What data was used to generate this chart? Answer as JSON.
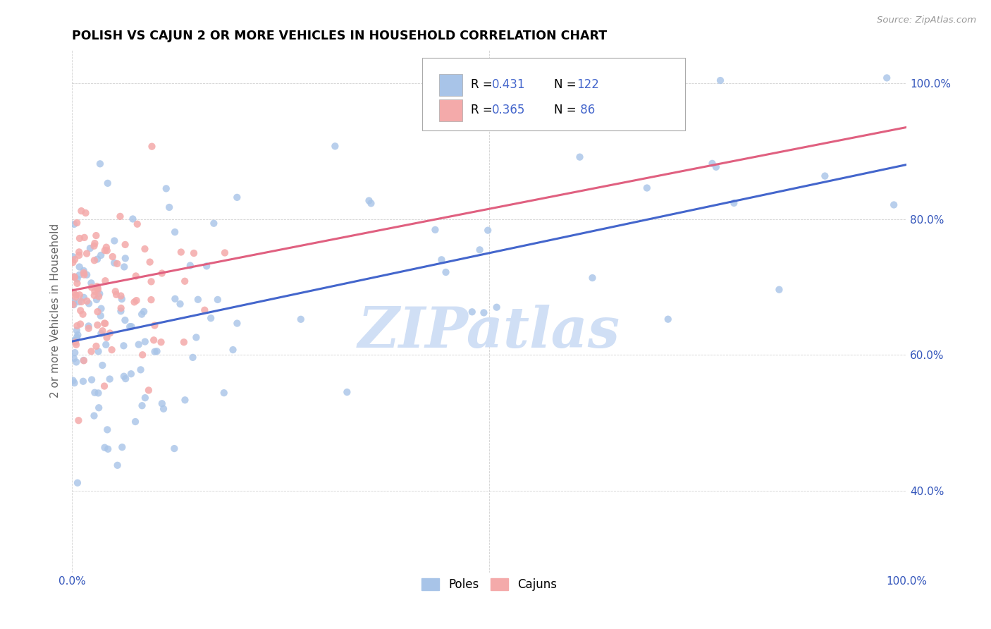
{
  "title": "POLISH VS CAJUN 2 OR MORE VEHICLES IN HOUSEHOLD CORRELATION CHART",
  "source": "Source: ZipAtlas.com",
  "ylabel": "2 or more Vehicles in Household",
  "xlim": [
    0.0,
    1.0
  ],
  "ylim": [
    0.28,
    1.05
  ],
  "legend_blue_label": "Poles",
  "legend_pink_label": "Cajuns",
  "legend_blue_R": "0.431",
  "legend_blue_N": "122",
  "legend_pink_R": "0.365",
  "legend_pink_N": " 86",
  "blue_color": "#A8C4E8",
  "pink_color": "#F4AAAA",
  "blue_line_color": "#4466CC",
  "pink_line_color": "#E06080",
  "watermark": "ZIPatlas",
  "watermark_color": "#D0DFF5",
  "blue_intercept": 0.62,
  "blue_slope": 0.26,
  "pink_intercept": 0.695,
  "pink_slope": 0.24,
  "seed": 17
}
